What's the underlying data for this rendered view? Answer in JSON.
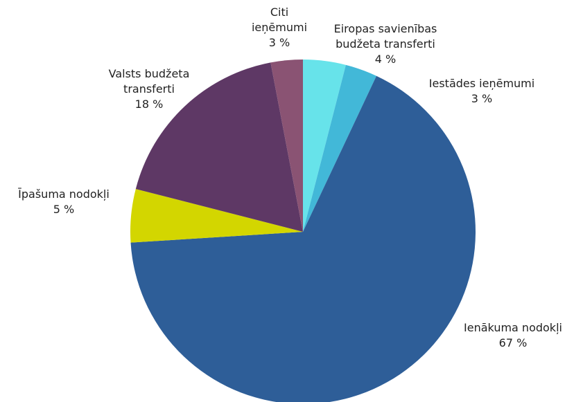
{
  "chart_data": {
    "type": "pie",
    "categories": [
      "Eiropas savienības budžeta transferti",
      "Iestādes ieņēmumi",
      "Ienākuma nodokļi",
      "Īpašuma nodokļi",
      "Valsts budžeta transferti",
      "Citi ieņēmumi"
    ],
    "values": [
      4,
      3,
      67,
      5,
      18,
      3
    ],
    "value_labels": [
      "4 %",
      "3 %",
      "67 %",
      "5 %",
      "18 %",
      "3 %"
    ],
    "colors": [
      "#67e3ea",
      "#42b8d8",
      "#2e5e98",
      "#d3d600",
      "#5e3865",
      "#8a5373"
    ]
  }
}
